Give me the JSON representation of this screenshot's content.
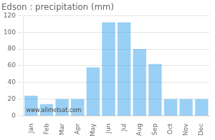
{
  "chart_data": {
    "type": "bar",
    "title": "Edson : precipitation (mm)",
    "categories": [
      "Jan",
      "Feb",
      "Mar",
      "Apr",
      "May",
      "Jun",
      "Jul",
      "Aug",
      "Sep",
      "Oct",
      "Nov",
      "Dec"
    ],
    "values": [
      24,
      14,
      20,
      20,
      58,
      112,
      112,
      80,
      62,
      20,
      20,
      20
    ],
    "ylim": [
      0,
      120
    ],
    "yticks": [
      0,
      20,
      40,
      60,
      80,
      100,
      120
    ],
    "grid": true,
    "annotation": "www.allmetsat.com"
  }
}
